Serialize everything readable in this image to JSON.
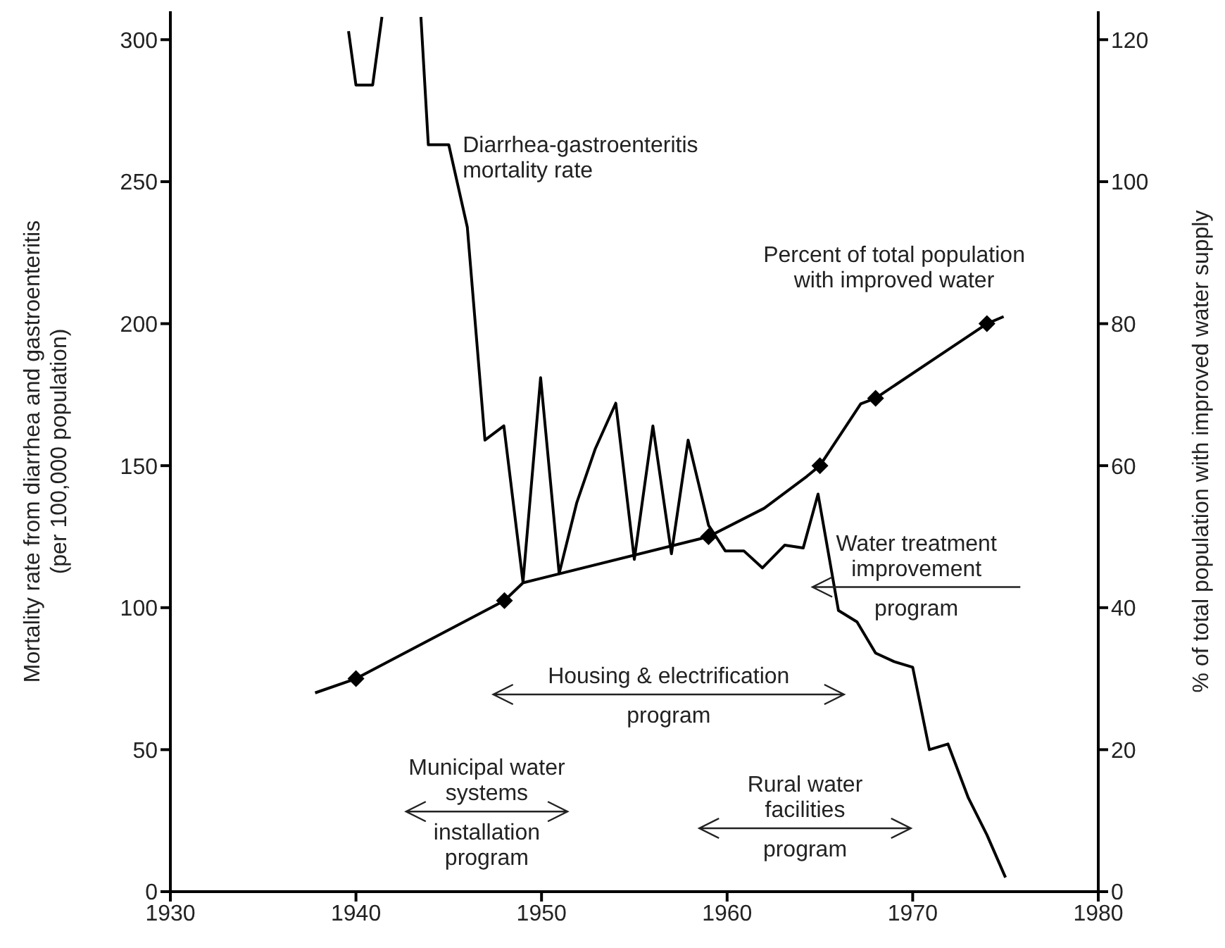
{
  "chart_data": {
    "type": "line",
    "ylabel": "Mortality rate from diarrhea and gastroenteritis\n(per 100,000 population)",
    "y2label": "% of total population with improved water supply",
    "xlim": [
      1930,
      1980
    ],
    "xticks": [
      1930,
      1940,
      1950,
      1960,
      1970,
      1980
    ],
    "ylim": [
      0,
      310
    ],
    "yticks": [
      0,
      50,
      100,
      150,
      200,
      250,
      300
    ],
    "y2lim": [
      0,
      124
    ],
    "y2ticks": [
      0,
      20,
      40,
      60,
      80,
      100,
      120
    ],
    "marker": "none",
    "line_style": "solid",
    "series": [
      {
        "name": "Diarrhea-gastroenteritis\nmortality rate",
        "color": "#000000",
        "x": [
          1939.6,
          1940.0,
          1940.9,
          1941.4,
          1942.5,
          1943.5,
          1943.9,
          1945.0,
          1946.0,
          1946.95,
          1947.97,
          1949.0,
          1949.95,
          1950.95,
          1951.9,
          1952.9,
          1954.0,
          1955.0,
          1956.0,
          1957.0,
          1957.9,
          1959.0,
          1959.9,
          1960.9,
          1961.9,
          1963.1,
          1964.1,
          1964.9,
          1966.0,
          1967.0,
          1968.0,
          1969.0,
          1970.0,
          1970.9,
          1971.9,
          1973.0,
          1974.0,
          1975.0
        ],
        "values": [
          303,
          284,
          284,
          308,
          null,
          308,
          263,
          263,
          234,
          159,
          164,
          109,
          181,
          112,
          137,
          156,
          172,
          117,
          164,
          119,
          159,
          129,
          120,
          120,
          114,
          122,
          121,
          140,
          99,
          95,
          84,
          81,
          79,
          50,
          52,
          33,
          20,
          5
        ]
      },
      {
        "name": "Percent of total population\nwith improved water",
        "color": "#000000",
        "axis": "y2",
        "x": [
          1937.8,
          1940.0,
          1948.0,
          1949.0,
          1959.0,
          1962.0,
          1964.3,
          1965.0,
          1967.2,
          1968.0,
          1974.0,
          1974.9
        ],
        "values": [
          28,
          30,
          41,
          43.5,
          50,
          54,
          58.5,
          60,
          68.7,
          69.5,
          80,
          81
        ]
      },
      {
        "type": "scatter",
        "marker": "diamond",
        "color": "#000000",
        "axis": "y2",
        "x": [
          1940.0,
          1948.0,
          1959.0,
          1965.0,
          1968.0,
          1974.0
        ],
        "values": [
          30,
          41,
          50,
          60,
          69.5,
          80
        ]
      }
    ],
    "annotations": [
      "Housing & electrification\n\nprogram",
      "Municipal water\nsystems\n\ninstallation\nprogram",
      "Rural water\nfacilities\n\nprogram",
      "Water treatment\nimprovement\n\nprogram"
    ]
  }
}
